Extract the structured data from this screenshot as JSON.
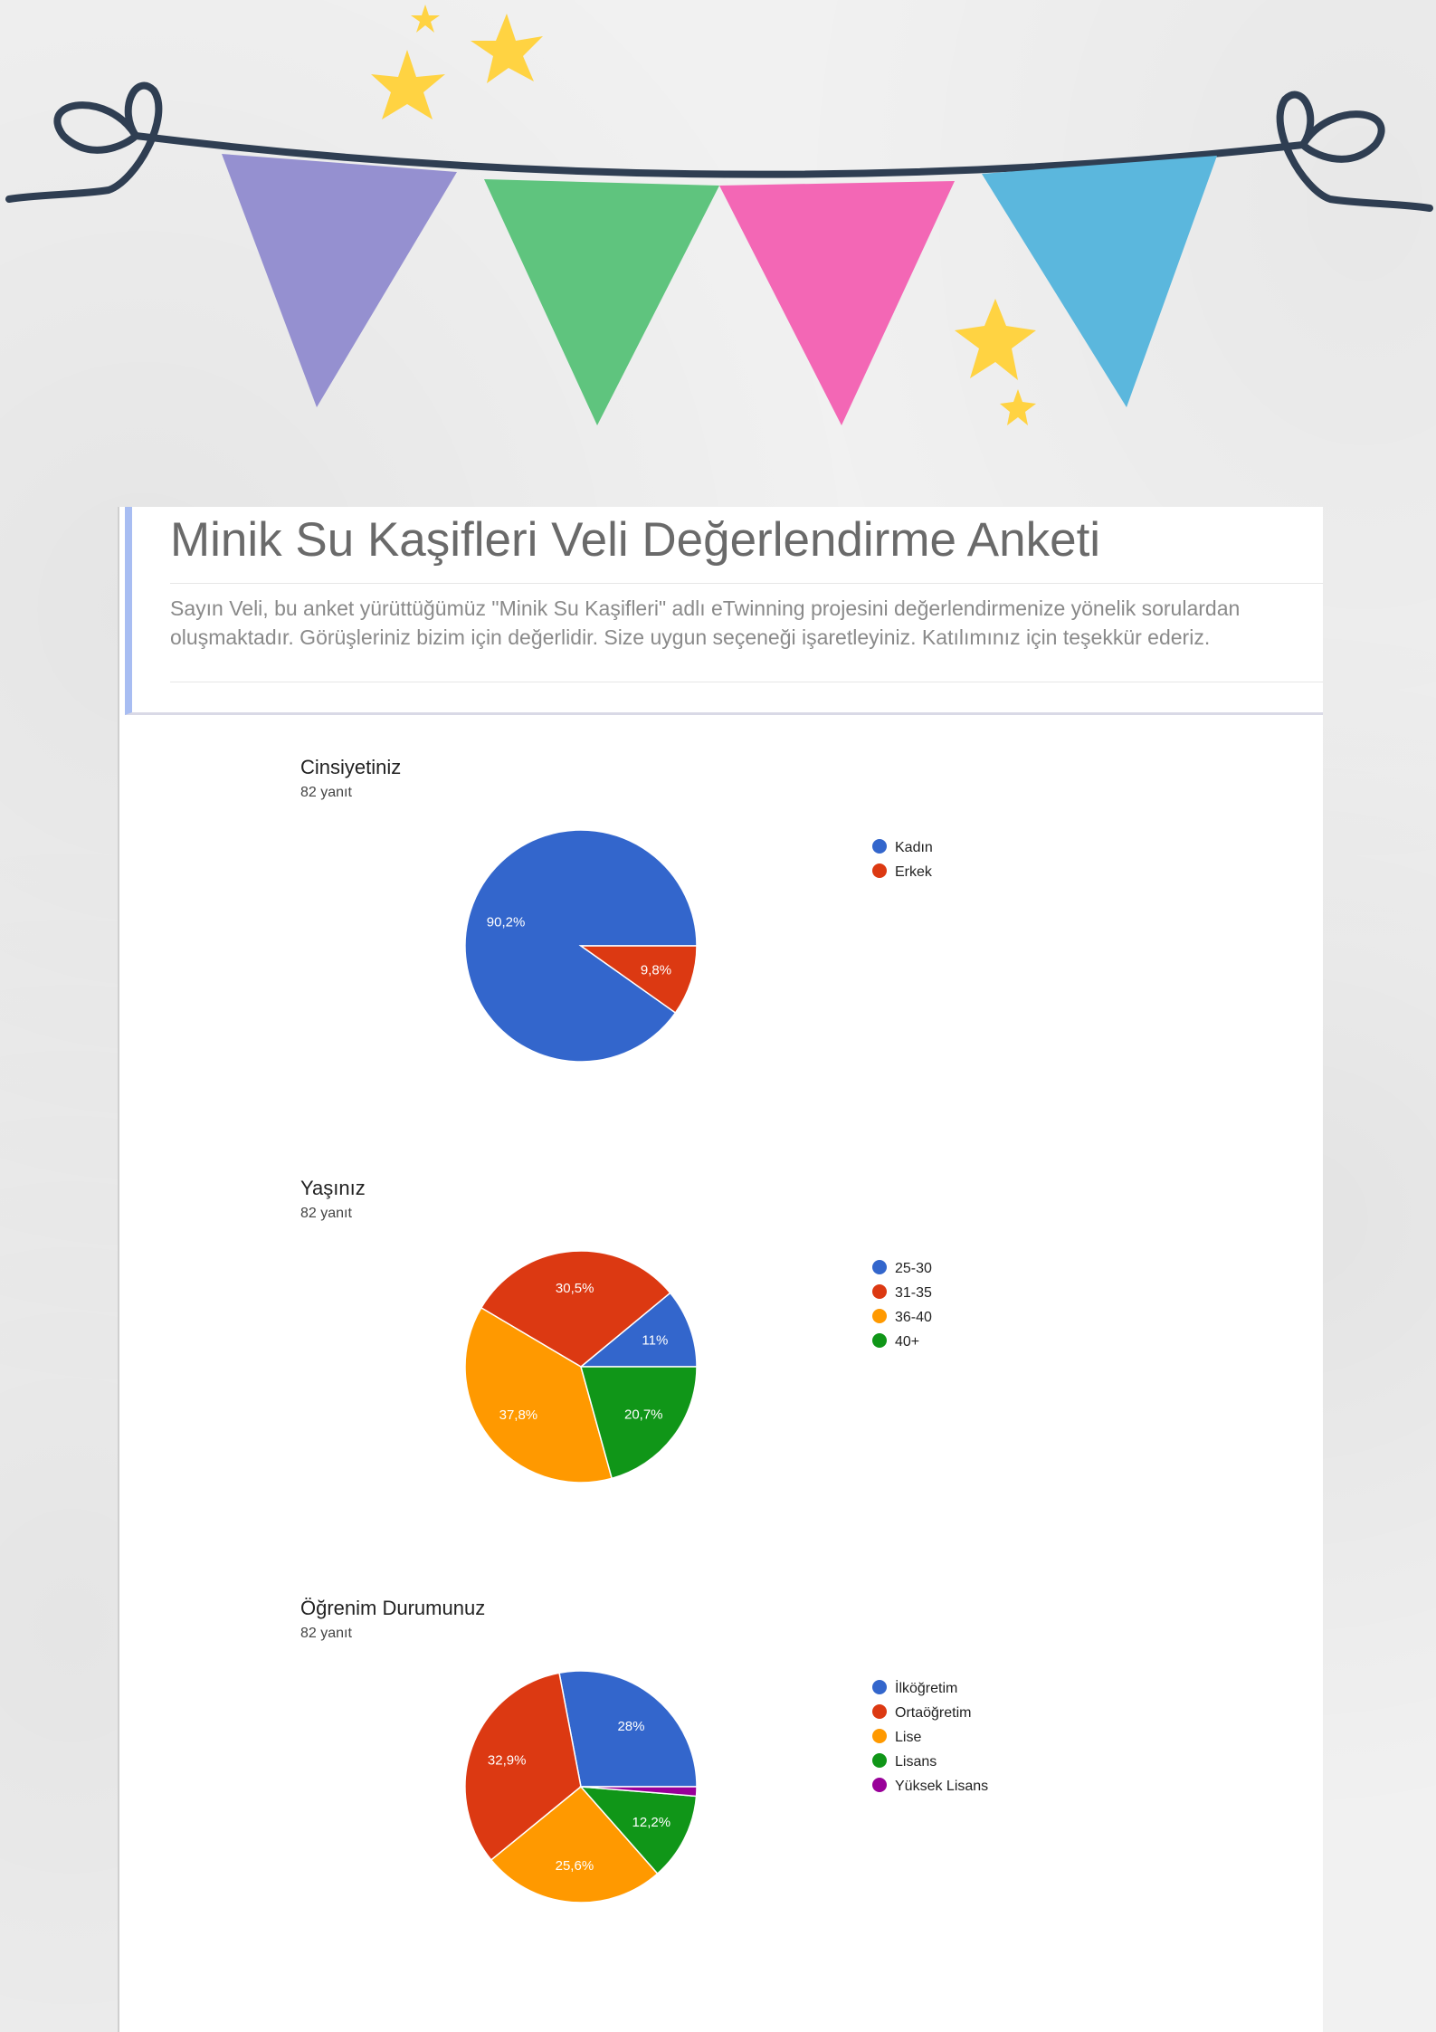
{
  "survey": {
    "title": "Minik Su Kaşifleri Veli Değerlendirme Anketi",
    "description": "Sayın Veli, bu anket yürüttüğümüz \"Minik Su Kaşifleri\" adlı eTwinning  projesini değerlendirmenize yönelik sorulardan oluşmaktadır. Görüşleriniz bizim için değerlidir. Size uygun seçeneği işaretleyiniz. Katılımınız için teşekkür ederiz."
  },
  "bunting_colors": [
    "#9590d0",
    "#5fc47e",
    "#f367b5",
    "#5bb7dd"
  ],
  "star_color": "#ffd342",
  "string_color": "#2f3e52",
  "questions": [
    {
      "title": "Cinsiyetiniz",
      "count": "82 yanıt"
    },
    {
      "title": "Yaşınız",
      "count": "82 yanıt"
    },
    {
      "title": "Öğrenim Durumunuz",
      "count": "82 yanıt"
    }
  ],
  "chart_data": [
    {
      "type": "pie",
      "title": "Cinsiyetiniz",
      "categories": [
        "Kadın",
        "Erkek"
      ],
      "values": [
        90.2,
        9.8
      ],
      "labels": [
        "90,2%",
        "9,8%"
      ],
      "colors": [
        "#3366cc",
        "#dc3912"
      ],
      "legend": "right"
    },
    {
      "type": "pie",
      "title": "Yaşınız",
      "categories": [
        "25-30",
        "31-35",
        "36-40",
        "40+"
      ],
      "values": [
        11,
        30.5,
        37.8,
        20.7
      ],
      "labels": [
        "11%",
        "30,5%",
        "37,8%",
        "20,7%"
      ],
      "colors": [
        "#3366cc",
        "#dc3912",
        "#ff9900",
        "#109618"
      ],
      "legend": "right"
    },
    {
      "type": "pie",
      "title": "Öğrenim Durumunuz",
      "categories": [
        "İlköğretim",
        "Ortaöğretim",
        "Lise",
        "Lisans",
        "Yüksek Lisans"
      ],
      "values": [
        28,
        32.9,
        25.6,
        12.2,
        1.3
      ],
      "labels": [
        "28%",
        "32,9%",
        "25,6%",
        "12,2%",
        ""
      ],
      "colors": [
        "#3366cc",
        "#dc3912",
        "#ff9900",
        "#109618",
        "#990099"
      ],
      "legend": "right"
    }
  ]
}
